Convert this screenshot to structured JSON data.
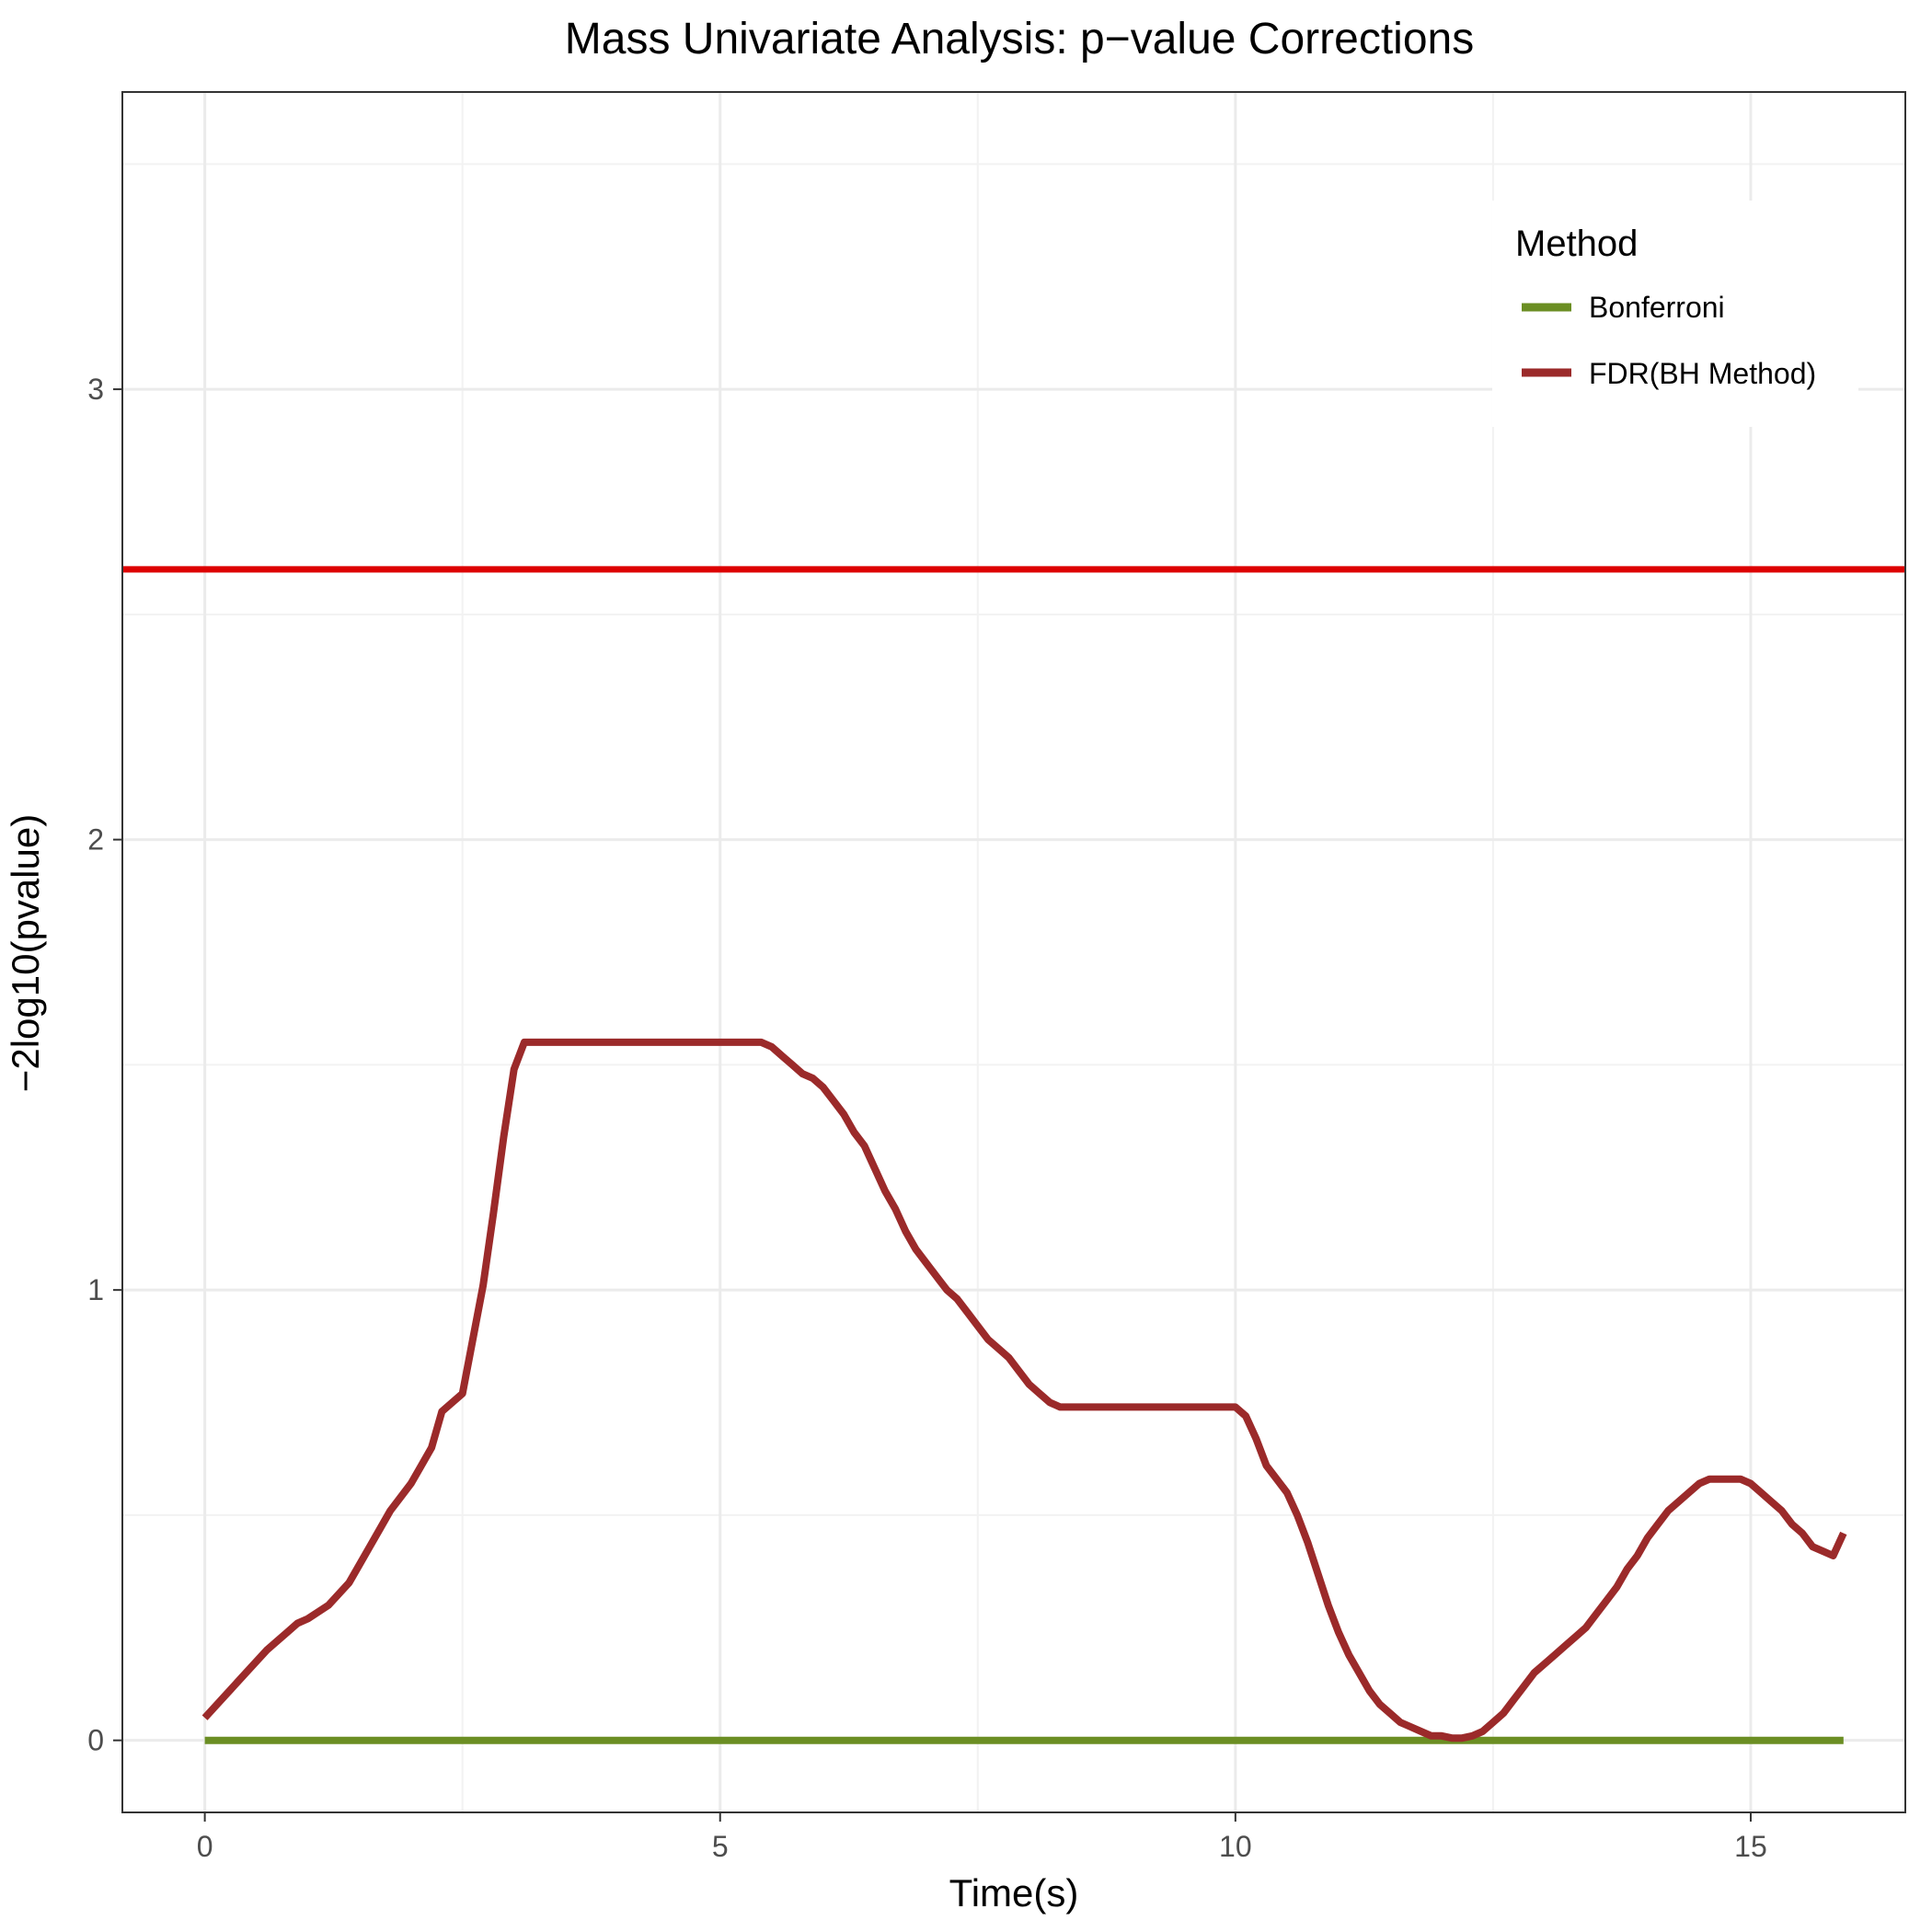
{
  "chart_data": {
    "type": "line",
    "title": "Mass Univariate Analysis: p−value Corrections",
    "xlabel": "Time(s)",
    "ylabel": "−2log10(pvalue)",
    "xlim": [
      -0.8,
      16.5
    ],
    "ylim": [
      -0.16,
      3.66
    ],
    "x_ticks": [
      0,
      5,
      10,
      15
    ],
    "x_tick_labels": [
      "0",
      "5",
      "10",
      "15"
    ],
    "y_ticks": [
      0,
      1,
      2,
      3
    ],
    "y_tick_labels": [
      "0",
      "1",
      "2",
      "3"
    ],
    "grid": true,
    "legend": {
      "title": "Method",
      "position": "top-right",
      "entries": [
        {
          "label": "Bonferroni",
          "color": "#6b8e23"
        },
        {
          "label": "FDR(BH Method)",
          "color": "#9b2a2a"
        }
      ]
    },
    "reference_line": {
      "y": 2.6,
      "color": "#dd0000"
    },
    "series": [
      {
        "name": "Bonferroni",
        "color": "#6b8e23",
        "x": [
          0,
          15.9
        ],
        "y": [
          0,
          0
        ]
      },
      {
        "name": "FDR(BH Method)",
        "color": "#9b2a2a",
        "x": [
          0,
          0.2,
          0.4,
          0.6,
          0.8,
          0.9,
          1.0,
          1.2,
          1.4,
          1.5,
          1.6,
          1.7,
          1.8,
          1.9,
          2.0,
          2.1,
          2.2,
          2.3,
          2.4,
          2.5,
          2.6,
          2.7,
          2.8,
          2.9,
          3.0,
          3.1,
          3.2,
          3.5,
          4.0,
          4.5,
          5.0,
          5.4,
          5.5,
          5.6,
          5.7,
          5.8,
          5.9,
          6.0,
          6.1,
          6.2,
          6.3,
          6.4,
          6.5,
          6.6,
          6.7,
          6.8,
          6.9,
          7.0,
          7.1,
          7.2,
          7.3,
          7.4,
          7.5,
          7.6,
          7.7,
          7.8,
          7.9,
          8.0,
          8.1,
          8.2,
          8.3,
          8.5,
          9.0,
          9.5,
          10.0,
          10.1,
          10.2,
          10.3,
          10.4,
          10.5,
          10.6,
          10.7,
          10.8,
          10.9,
          11.0,
          11.1,
          11.2,
          11.3,
          11.4,
          11.5,
          11.6,
          11.7,
          11.8,
          11.9,
          12.0,
          12.1,
          12.2,
          12.3,
          12.4,
          12.5,
          12.6,
          12.7,
          12.8,
          12.9,
          13.0,
          13.1,
          13.2,
          13.3,
          13.4,
          13.5,
          13.6,
          13.7,
          13.8,
          13.9,
          14.0,
          14.1,
          14.2,
          14.3,
          14.4,
          14.5,
          14.6,
          14.7,
          14.8,
          14.9,
          15.0,
          15.1,
          15.2,
          15.3,
          15.4,
          15.5,
          15.6,
          15.7,
          15.8,
          15.9
        ],
        "y": [
          0.05,
          0.1,
          0.15,
          0.2,
          0.24,
          0.26,
          0.27,
          0.3,
          0.35,
          0.39,
          0.43,
          0.47,
          0.51,
          0.54,
          0.57,
          0.61,
          0.65,
          0.73,
          0.75,
          0.77,
          0.89,
          1.01,
          1.17,
          1.34,
          1.49,
          1.55,
          1.55,
          1.55,
          1.55,
          1.55,
          1.55,
          1.55,
          1.54,
          1.52,
          1.5,
          1.48,
          1.47,
          1.45,
          1.42,
          1.39,
          1.35,
          1.32,
          1.27,
          1.22,
          1.18,
          1.13,
          1.09,
          1.06,
          1.03,
          1.0,
          0.98,
          0.95,
          0.92,
          0.89,
          0.87,
          0.85,
          0.82,
          0.79,
          0.77,
          0.75,
          0.74,
          0.74,
          0.74,
          0.74,
          0.74,
          0.72,
          0.67,
          0.61,
          0.58,
          0.55,
          0.5,
          0.44,
          0.37,
          0.3,
          0.24,
          0.19,
          0.15,
          0.11,
          0.08,
          0.06,
          0.04,
          0.03,
          0.02,
          0.01,
          0.01,
          0.005,
          0.005,
          0.01,
          0.02,
          0.04,
          0.06,
          0.09,
          0.12,
          0.15,
          0.17,
          0.19,
          0.21,
          0.23,
          0.25,
          0.28,
          0.31,
          0.34,
          0.38,
          0.41,
          0.45,
          0.48,
          0.51,
          0.53,
          0.55,
          0.57,
          0.58,
          0.58,
          0.58,
          0.58,
          0.57,
          0.55,
          0.53,
          0.51,
          0.48,
          0.46,
          0.43,
          0.42,
          0.41,
          0.46
        ]
      }
    ]
  }
}
